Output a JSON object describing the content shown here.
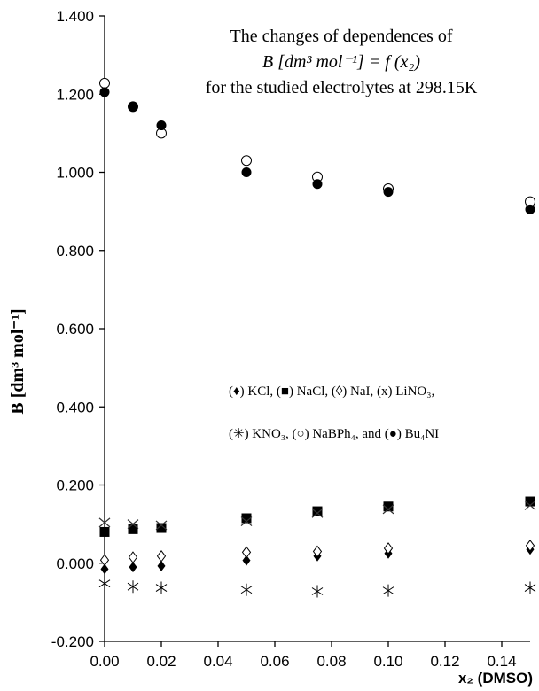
{
  "chart_data": {
    "type": "scatter",
    "title_lines": [
      "The changes of dependences of",
      "B [dm³ mol⁻¹] = f (x₂)",
      "for the studied electrolytes at 298.15K"
    ],
    "xlabel": "x₂ (DMSO)",
    "ylabel": "B [dm³ mol⁻¹]",
    "xlim": [
      0,
      0.15
    ],
    "ylim": [
      -0.2,
      1.4
    ],
    "x_ticks": [
      "0.00",
      "0.02",
      "0.04",
      "0.06",
      "0.08",
      "0.10",
      "0.12",
      "0.14"
    ],
    "y_ticks": [
      "-0.200",
      "0.000",
      "0.200",
      "0.400",
      "0.600",
      "0.800",
      "1.000",
      "1.200",
      "1.400"
    ],
    "grid": false,
    "legend_lines": [
      "(♦) KCl, (■) NaCl, (◊) NaI, (x) LiNO₃,",
      "(✳) KNO₃, (○) NaBPh₄, and (●) Bu₄NI"
    ],
    "x": [
      0,
      0.01,
      0.02,
      0.05,
      0.075,
      0.1,
      0.15
    ],
    "series": [
      {
        "name": "KCl",
        "marker": "filled-diamond",
        "values": [
          -0.015,
          -0.01,
          -0.007,
          0.007,
          0.018,
          0.025,
          0.035
        ]
      },
      {
        "name": "NaCl",
        "marker": "filled-square",
        "values": [
          0.08,
          0.087,
          0.09,
          0.115,
          0.133,
          0.145,
          0.158
        ]
      },
      {
        "name": "NaI",
        "marker": "open-diamond",
        "values": [
          0.008,
          0.015,
          0.018,
          0.028,
          0.03,
          0.038,
          0.045
        ]
      },
      {
        "name": "LiNO3",
        "marker": "x",
        "values": [
          0.104,
          0.1,
          0.097,
          0.107,
          0.128,
          0.138,
          0.148
        ]
      },
      {
        "name": "KNO3",
        "marker": "asterisk",
        "values": [
          -0.052,
          -0.06,
          -0.063,
          -0.068,
          -0.072,
          -0.07,
          -0.063
        ]
      },
      {
        "name": "NaBPh4",
        "marker": "open-circle",
        "values": [
          1.228,
          1.168,
          1.1,
          1.03,
          0.988,
          0.958,
          0.925
        ]
      },
      {
        "name": "Bu4NI",
        "marker": "filled-circle",
        "values": [
          1.205,
          1.168,
          1.12,
          1.0,
          0.97,
          0.95,
          0.905
        ]
      }
    ]
  }
}
